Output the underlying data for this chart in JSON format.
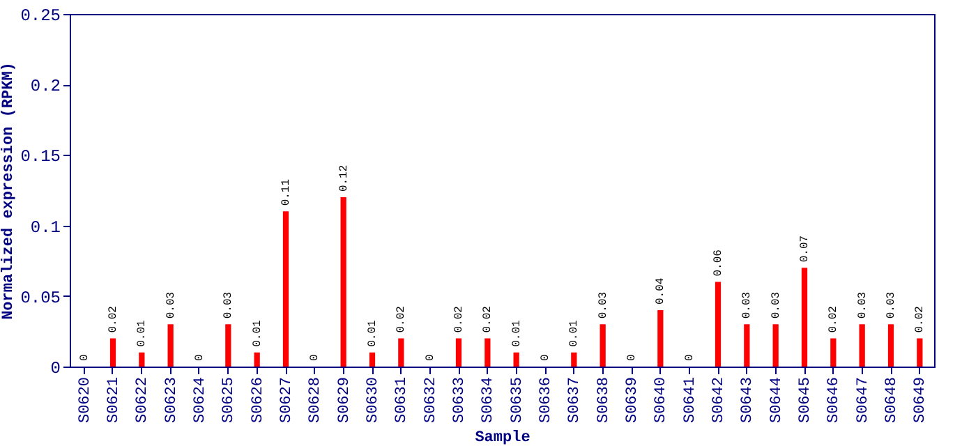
{
  "chart_data": {
    "type": "bar",
    "xlabel": "Sample",
    "ylabel": "Normalized expression (RPKM)",
    "categories": [
      "S0620",
      "S0621",
      "S0622",
      "S0623",
      "S0624",
      "S0625",
      "S0626",
      "S0627",
      "S0628",
      "S0629",
      "S0630",
      "S0631",
      "S0632",
      "S0633",
      "S0634",
      "S0635",
      "S0636",
      "S0637",
      "S0638",
      "S0639",
      "S0640",
      "S0641",
      "S0642",
      "S0643",
      "S0644",
      "S0645",
      "S0646",
      "S0647",
      "S0648",
      "S0649"
    ],
    "values": [
      0,
      0.02,
      0.01,
      0.03,
      0,
      0.03,
      0.01,
      0.11,
      0,
      0.12,
      0.01,
      0.02,
      0,
      0.02,
      0.02,
      0.01,
      0,
      0.01,
      0.03,
      0,
      0.04,
      0,
      0.06,
      0.03,
      0.03,
      0.07,
      0.02,
      0.03,
      0.03,
      0.02
    ],
    "color": "#ff0000",
    "ylim": [
      0,
      0.25
    ],
    "yticks": [
      0,
      0.05,
      0.1,
      0.15,
      0.2,
      0.25
    ],
    "data_labels": true,
    "grid": false
  }
}
